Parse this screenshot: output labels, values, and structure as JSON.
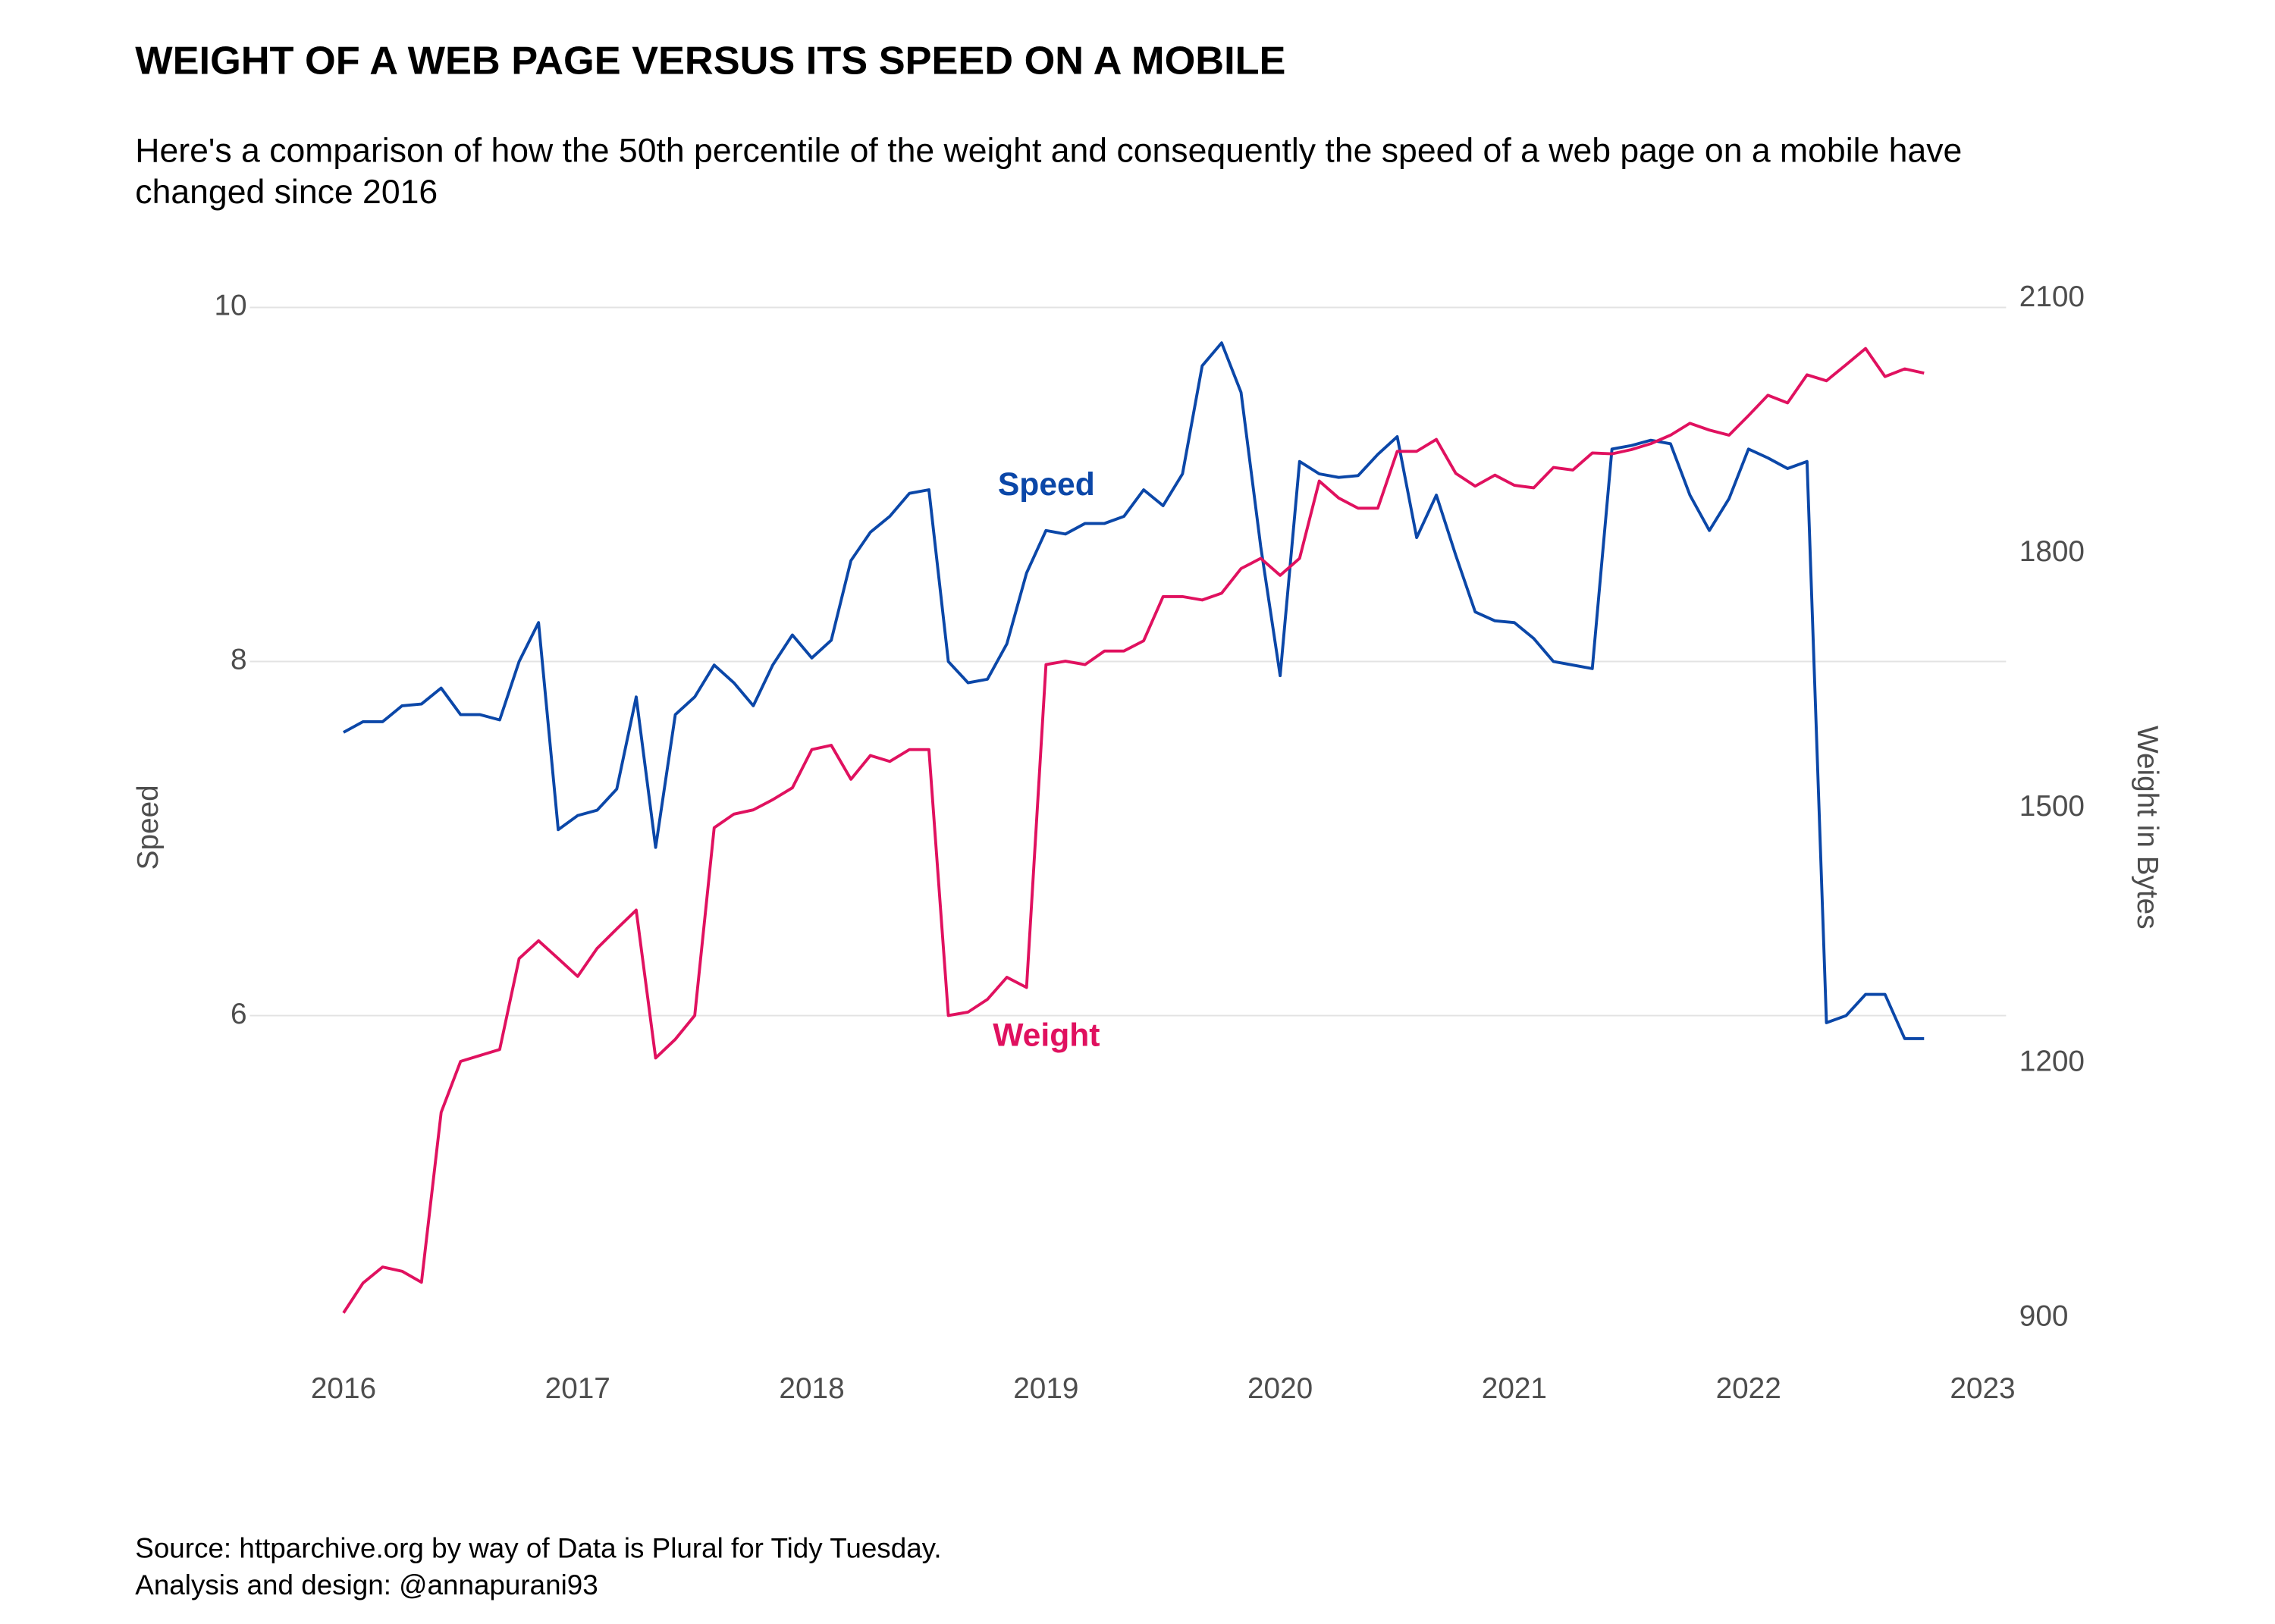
{
  "chart_data": {
    "type": "line",
    "title": "WEIGHT OF A WEB PAGE VERSUS ITS SPEED ON A MOBILE",
    "subtitle": [
      "Here's a comparison of how the 50th percentile of the weight and consequently the speed of a web page on a mobile have",
      "changed since 2016"
    ],
    "caption": [
      "Source: httparchive.org by way of Data is Plural for Tidy Tuesday.",
      "Analysis and design: @annapurani93"
    ],
    "y_label": "Speed",
    "y2_label": "Weight in Bytes",
    "annotations": [
      "Speed",
      "Weight"
    ],
    "x": [
      2016,
      2016.083,
      2016.167,
      2016.25,
      2016.333,
      2016.417,
      2016.5,
      2016.583,
      2016.667,
      2016.75,
      2016.833,
      2016.917,
      2017,
      2017.083,
      2017.167,
      2017.25,
      2017.333,
      2017.417,
      2017.5,
      2017.583,
      2017.667,
      2017.75,
      2017.833,
      2017.917,
      2018,
      2018.083,
      2018.167,
      2018.25,
      2018.333,
      2018.417,
      2018.5,
      2018.583,
      2018.667,
      2018.75,
      2018.833,
      2018.917,
      2019,
      2019.083,
      2019.167,
      2019.25,
      2019.333,
      2019.417,
      2019.5,
      2019.583,
      2019.667,
      2019.75,
      2019.833,
      2019.917,
      2020,
      2020.083,
      2020.167,
      2020.25,
      2020.333,
      2020.417,
      2020.5,
      2020.583,
      2020.667,
      2020.75,
      2020.833,
      2020.917,
      2021,
      2021.083,
      2021.167,
      2021.25,
      2021.333,
      2021.417,
      2021.5,
      2021.583,
      2021.667,
      2021.75,
      2021.833,
      2021.917,
      2022,
      2022.083,
      2022.167,
      2022.25,
      2022.333,
      2022.417,
      2022.5,
      2022.583,
      2022.667,
      2022.75
    ],
    "series": [
      {
        "name": "Speed",
        "color": "#0b47a8",
        "axis": "y",
        "values": [
          7.6,
          7.66,
          7.66,
          7.75,
          7.76,
          7.85,
          7.7,
          7.7,
          7.67,
          8.0,
          8.22,
          7.05,
          7.13,
          7.16,
          7.28,
          7.8,
          6.95,
          7.7,
          7.8,
          7.98,
          7.88,
          7.75,
          7.98,
          8.15,
          8.02,
          8.12,
          8.57,
          8.73,
          8.82,
          8.95,
          8.97,
          8.0,
          7.88,
          7.9,
          8.1,
          8.5,
          8.74,
          8.72,
          8.78,
          8.78,
          8.82,
          8.97,
          8.88,
          9.06,
          9.67,
          9.8,
          9.52,
          8.65,
          7.92,
          9.13,
          9.06,
          9.04,
          9.05,
          9.17,
          9.27,
          8.7,
          8.94,
          8.6,
          8.28,
          8.23,
          8.22,
          8.13,
          8.0,
          7.98,
          7.96,
          9.2,
          9.22,
          9.25,
          9.23,
          8.94,
          8.74,
          8.92,
          9.2,
          9.15,
          9.09,
          9.13,
          5.96,
          6.0,
          6.12,
          6.12,
          5.87,
          5.87
        ]
      },
      {
        "name": "Weight",
        "color": "#e0115f",
        "axis": "y2",
        "values": [
          906,
          941,
          960,
          955,
          942,
          1142,
          1202,
          1209,
          1216,
          1323,
          1344,
          1323,
          1302,
          1335,
          1358,
          1380,
          1206,
          1228,
          1256,
          1477,
          1493,
          1498,
          1510,
          1524,
          1569,
          1574,
          1534,
          1562,
          1555,
          1569,
          1569,
          1256,
          1260,
          1275,
          1301,
          1289,
          1669,
          1673,
          1669,
          1685,
          1685,
          1697,
          1749,
          1749,
          1745,
          1753,
          1782,
          1794,
          1774,
          1794,
          1885,
          1865,
          1853,
          1853,
          1920,
          1920,
          1934,
          1894,
          1879,
          1892,
          1880,
          1877,
          1901,
          1898,
          1918,
          1917,
          1922,
          1929,
          1939,
          1953,
          1945,
          1939,
          1962,
          1986,
          1977,
          2010,
          2003,
          2022,
          2041,
          2008,
          2017,
          2012
        ]
      }
    ],
    "xlim": [
      2015.6,
      2023.1
    ],
    "xticks": [
      2016,
      2017,
      2018,
      2019,
      2020,
      2021,
      2022,
      2023
    ],
    "ylim": [
      4.1,
      10.2
    ],
    "yticks": [
      6,
      8,
      10
    ],
    "y2lim": [
      860,
      2131
    ],
    "y2ticks": [
      900,
      1200,
      1500,
      1800,
      2100
    ],
    "grid": true
  }
}
